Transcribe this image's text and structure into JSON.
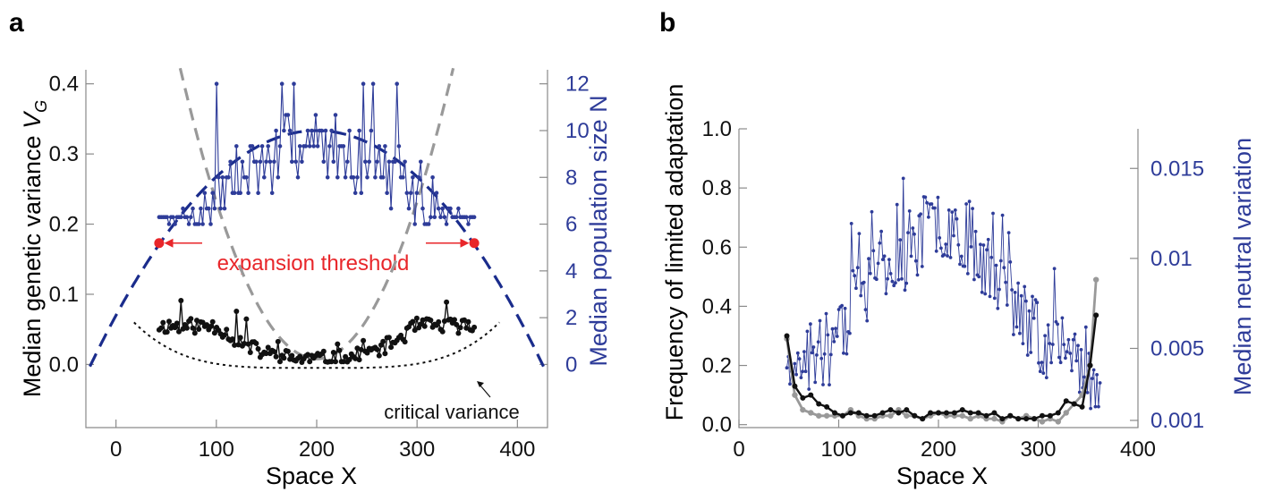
{
  "colors": {
    "blue": "#2e3c99",
    "navy": "#1a2c8c",
    "black": "#111111",
    "gray": "#999999",
    "red": "#e8262a",
    "axis": "#8a8a8a"
  },
  "panels": {
    "a": "a",
    "b": "b"
  },
  "chart_data": [
    {
      "type": "line",
      "panel": "a",
      "xlabel": "Space X",
      "ylabel_left_prefix": "Median genetic variance ",
      "ylabel_left_var": "V",
      "ylabel_left_sub": "G",
      "ylabel_right": "Median population size N",
      "xlim": [
        -30,
        430
      ],
      "ylim_left": [
        -0.09,
        0.42
      ],
      "ylim_right": [
        -2.7,
        12.6
      ],
      "xticks": [
        "0",
        "100",
        "200",
        "300",
        "400"
      ],
      "xtick_values": [
        0,
        100,
        200,
        300,
        400
      ],
      "yticks_left": [
        "0.0",
        "0.1",
        "0.2",
        "0.3",
        "0.4"
      ],
      "ytick_left_values": [
        0,
        0.1,
        0.2,
        0.3,
        0.4
      ],
      "yticks_right": [
        "0",
        "2",
        "4",
        "6",
        "8",
        "10",
        "12"
      ],
      "ytick_right_values": [
        0,
        2,
        4,
        6,
        8,
        10,
        12
      ],
      "annotations": {
        "expansion_threshold": "expansion threshold",
        "critical_variance": "critical variance"
      },
      "threshold_points": {
        "x": [
          43,
          357
        ],
        "y": [
          0.173,
          0.173
        ]
      },
      "curves": {
        "gray_dashed": "quadratic V_G curve, minimum ~0.008 at x=200, rising to 0.42 near x=12 and x=388",
        "navy_dashed": "parabolic population size curve, 0 at x=-25 and x=425, peak ~10 at x=200",
        "black_dotted": "critical variance curve, ~0.06 at x=18 and x=382, minimum ~-0.005 at x=200"
      },
      "series": [
        {
          "name": "black",
          "axis": "left",
          "x_start": 43,
          "x_end": 357,
          "count": 160,
          "description": "median genetic variance, ~0.05 near edges, ~0.008 at centre"
        },
        {
          "name": "blue",
          "axis": "right",
          "x_start": 43,
          "x_end": 357,
          "count": 160,
          "description": "median population size, mostly 7-10, peaks at 12"
        }
      ]
    },
    {
      "type": "line",
      "panel": "b",
      "xlabel": "Space X",
      "ylabel_left": "Frequency of limited adaptation",
      "ylabel_right": "Median neutral variation",
      "xlim": [
        0,
        400
      ],
      "ylim_left": [
        -0.01,
        1.0
      ],
      "ylim_right": [
        0.0006,
        0.0172
      ],
      "xticks": [
        "0",
        "100",
        "200",
        "300",
        "400"
      ],
      "xtick_values": [
        0,
        100,
        200,
        300,
        400
      ],
      "yticks_left": [
        "0.0",
        "0.2",
        "0.4",
        "0.6",
        "0.8",
        "1.0"
      ],
      "ytick_left_values": [
        0,
        0.2,
        0.4,
        0.6,
        0.8,
        1.0
      ],
      "yticks_right": [
        "0.001",
        "0.005",
        "0.01",
        "0.015"
      ],
      "ytick_right_values": [
        0.001,
        0.005,
        0.01,
        0.015
      ],
      "series": [
        {
          "name": "black",
          "axis": "left",
          "x": [
            48,
            56,
            64,
            72,
            80,
            88,
            96,
            104,
            112,
            120,
            128,
            136,
            144,
            152,
            160,
            168,
            176,
            184,
            192,
            200,
            208,
            216,
            224,
            232,
            240,
            248,
            256,
            264,
            272,
            280,
            288,
            296,
            304,
            312,
            320,
            328,
            336,
            344,
            352,
            358
          ],
          "y": [
            0.3,
            0.13,
            0.09,
            0.1,
            0.07,
            0.06,
            0.04,
            0.03,
            0.04,
            0.04,
            0.03,
            0.03,
            0.04,
            0.05,
            0.04,
            0.05,
            0.03,
            0.02,
            0.04,
            0.04,
            0.04,
            0.04,
            0.05,
            0.04,
            0.04,
            0.03,
            0.04,
            0.02,
            0.03,
            0.02,
            0.02,
            0.02,
            0.03,
            0.03,
            0.04,
            0.08,
            0.07,
            0.06,
            0.2,
            0.37
          ]
        },
        {
          "name": "gray",
          "axis": "left",
          "x": [
            48,
            56,
            64,
            72,
            80,
            88,
            96,
            104,
            112,
            120,
            128,
            136,
            144,
            152,
            160,
            168,
            176,
            184,
            192,
            200,
            208,
            216,
            224,
            232,
            240,
            248,
            256,
            264,
            272,
            280,
            288,
            296,
            304,
            312,
            320,
            328,
            336,
            344,
            352,
            358
          ],
          "y": [
            0.29,
            0.1,
            0.05,
            0.04,
            0.03,
            0.03,
            0.03,
            0.03,
            0.05,
            0.03,
            0.02,
            0.02,
            0.03,
            0.03,
            0.05,
            0.03,
            0.03,
            0.02,
            0.03,
            0.04,
            0.03,
            0.03,
            0.03,
            0.02,
            0.03,
            0.02,
            0.02,
            0.01,
            0.03,
            0.02,
            0.03,
            0.02,
            0.01,
            0.02,
            0.01,
            0.04,
            0.07,
            0.1,
            0.2,
            0.49
          ]
        },
        {
          "name": "blue",
          "axis": "right",
          "x_start": 48,
          "x_end": 362,
          "count": 200,
          "description": "median neutral variation, ~0.004 at edges, ~0.013 peak near x=200"
        }
      ]
    }
  ]
}
